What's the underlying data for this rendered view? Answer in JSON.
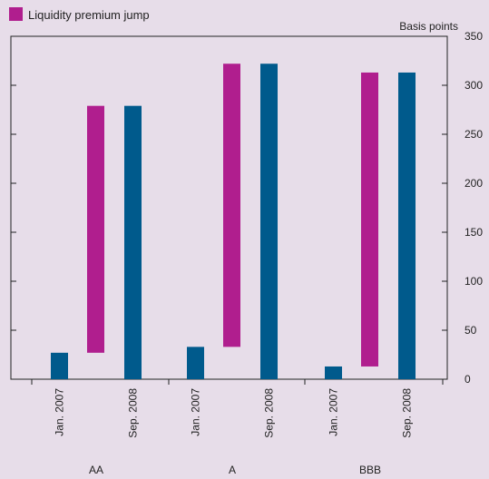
{
  "chart_data": {
    "type": "bar",
    "title": "",
    "ylabel": "Basis points",
    "ylim": [
      0,
      350
    ],
    "yticks": [
      0,
      50,
      100,
      150,
      200,
      250,
      300,
      350
    ],
    "groups": [
      {
        "label": "AA",
        "spread_jan_2007": 27,
        "premium_jump": {
          "from": 27,
          "to": 279
        },
        "spread_sep_2008": 279
      },
      {
        "label": "A",
        "spread_jan_2007": 33,
        "premium_jump": {
          "from": 33,
          "to": 322
        },
        "spread_sep_2008": 322
      },
      {
        "label": "BBB",
        "spread_jan_2007": 13,
        "premium_jump": {
          "from": 13,
          "to": 313
        },
        "spread_sep_2008": 313
      }
    ],
    "bar_labels": [
      "Jan. 2007",
      "Sep. 2008"
    ],
    "legend": [
      {
        "name": "Liquidity premium jump",
        "color": "#b01e8e"
      }
    ],
    "colors": {
      "spread": "#005a8c",
      "jump": "#b01e8e"
    },
    "grid": false,
    "legend_position": "top-left"
  }
}
